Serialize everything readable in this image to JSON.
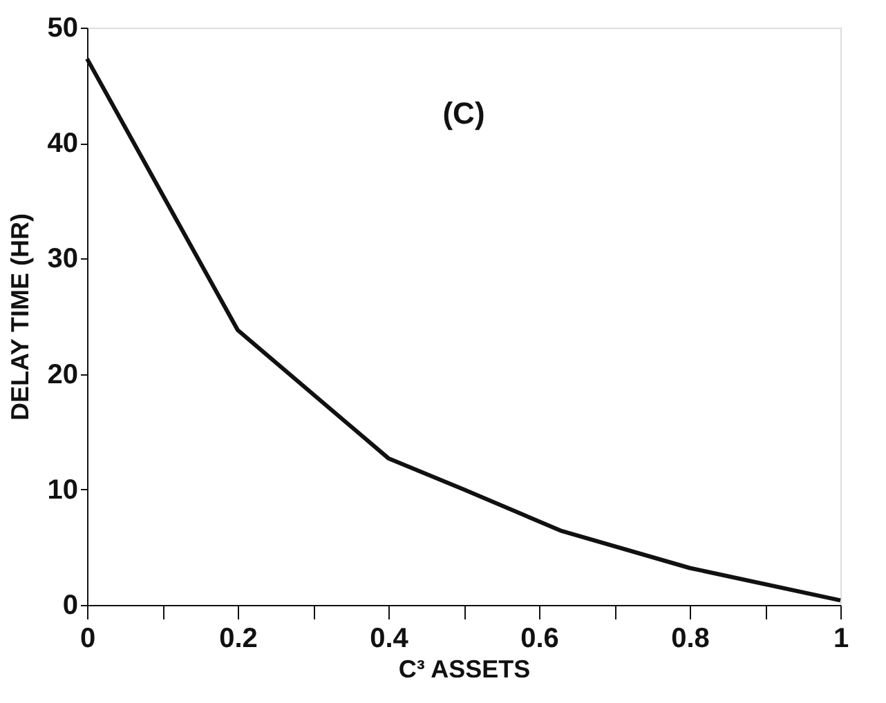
{
  "chart_data": {
    "type": "line",
    "xlabel": "C³ ASSETS",
    "ylabel": "DELAY TIME (HR)",
    "annotations": [
      "(C)"
    ],
    "x": [
      0,
      0.2,
      0.4,
      0.5,
      0.63,
      0.8,
      1
    ],
    "series": [
      {
        "color": "#111111",
        "values": [
          47.3,
          23.8,
          12.7,
          10,
          6.4,
          3.2,
          0.4
        ]
      }
    ],
    "xlim": [
      0,
      1
    ],
    "ylim": [
      0,
      50
    ],
    "xticks": [
      0,
      {
        "value": 0.1,
        "label": null
      },
      0.2,
      {
        "value": 0.3,
        "label": null
      },
      0.4,
      {
        "value": 0.5,
        "label": null
      },
      0.6,
      {
        "value": 0.7,
        "label": null
      },
      0.8,
      {
        "value": 0.9,
        "label": null
      },
      1
    ],
    "yticks": [
      0,
      10,
      20,
      30,
      40,
      50
    ],
    "grid": false,
    "marker": "none",
    "line_style": "solid"
  }
}
